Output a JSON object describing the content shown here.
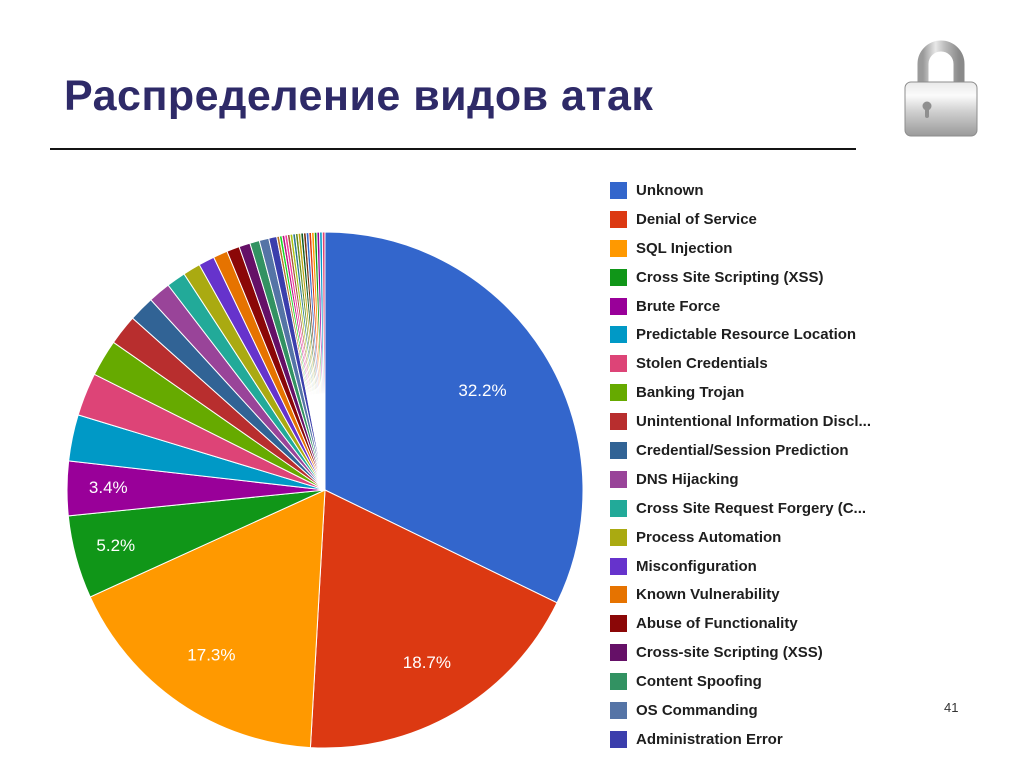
{
  "slide": {
    "title": "Распределение видов атак",
    "page_number": "41"
  },
  "chart_data": {
    "type": "pie",
    "title": "Распределение видов атак",
    "legend_position": "right",
    "start_angle_deg": 0,
    "direction": "clockwise",
    "stroke_color": "#ffffff",
    "label_color": "#ffffff",
    "slices": [
      {
        "label": "Unknown",
        "value": 32.2,
        "color": "#3366CC",
        "pct_label": "32.2%",
        "label_r": 0.72
      },
      {
        "label": "Denial of Service",
        "value": 18.7,
        "color": "#DC3912",
        "pct_label": "18.7%",
        "label_r": 0.78
      },
      {
        "label": "SQL Injection",
        "value": 17.3,
        "color": "#FF9900",
        "pct_label": "17.3%",
        "label_r": 0.78
      },
      {
        "label": "Cross Site Scripting (XSS)",
        "value": 5.2,
        "color": "#109618",
        "pct_label": "5.2%",
        "label_r": 0.84
      },
      {
        "label": "Brute Force",
        "value": 3.4,
        "color": "#990099",
        "pct_label": "3.4%",
        "label_r": 0.84
      },
      {
        "label": "Predictable Resource Location",
        "value": 2.9,
        "color": "#0099C6"
      },
      {
        "label": "Stolen Credentials",
        "value": 2.7,
        "color": "#DD4477"
      },
      {
        "label": "Banking Trojan",
        "value": 2.3,
        "color": "#66AA00"
      },
      {
        "label": "Unintentional Information Discl...",
        "value": 1.9,
        "color": "#B82E2E"
      },
      {
        "label": "Credential/Session Prediction",
        "value": 1.6,
        "color": "#316395"
      },
      {
        "label": "DNS Hijacking",
        "value": 1.4,
        "color": "#994499"
      },
      {
        "label": "Cross Site Request Forgery (C...",
        "value": 1.2,
        "color": "#22AA99"
      },
      {
        "label": "Process Automation",
        "value": 1.1,
        "color": "#AAAA11"
      },
      {
        "label": "Misconfiguration",
        "value": 1.0,
        "color": "#6633CC"
      },
      {
        "label": "Known Vulnerability",
        "value": 0.9,
        "color": "#E67300"
      },
      {
        "label": "Abuse of Functionality",
        "value": 0.8,
        "color": "#8B0707"
      },
      {
        "label": "Cross-site Scripting (XSS)",
        "value": 0.7,
        "color": "#651067"
      },
      {
        "label": "Content Spoofing",
        "value": 0.6,
        "color": "#329262"
      },
      {
        "label": "OS Commanding",
        "value": 0.6,
        "color": "#5574A6"
      },
      {
        "label": "Administration Error",
        "value": 0.5,
        "color": "#3B3EAC"
      }
    ],
    "unlabeled_remainder": {
      "value": 3.0,
      "slice_count": 18,
      "colors": [
        "#B77322",
        "#16D620",
        "#B91383",
        "#F4359E",
        "#9C5935",
        "#A9C413",
        "#2A778D",
        "#668D1C",
        "#BEA413",
        "#0C5922",
        "#743411",
        "#3366CC",
        "#DC3912",
        "#FF9900",
        "#109618",
        "#990099",
        "#0099C6",
        "#DD4477"
      ]
    }
  }
}
